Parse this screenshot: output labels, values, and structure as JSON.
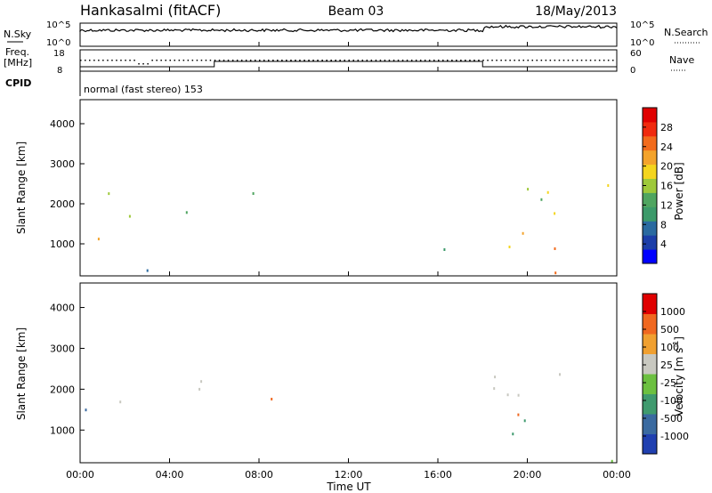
{
  "header": {
    "station": "Hankasalmi (fitACF)",
    "beam": "Beam 03",
    "date": "18/May/2013"
  },
  "noise_panel": {
    "left_label": "N.Sky",
    "left_ticks": [
      "10^5",
      "10^0"
    ],
    "right_label": "N.Search",
    "right_ticks": [
      "10^5",
      "10^0"
    ]
  },
  "freq_panel": {
    "left_label_1": "Freq.",
    "left_label_2": "[MHz]",
    "left_ticks": [
      "18",
      "8"
    ],
    "right_label": "Nave",
    "right_ticks": [
      "60",
      "0"
    ],
    "cpid_label": "CPID",
    "cpid_text": "normal (fast stereo) 153"
  },
  "chart_data": [
    {
      "type": "heatmap",
      "name": "power",
      "ylabel": "Slant Range [km]",
      "y_ticks": [
        "4000",
        "3000",
        "2000",
        "1000"
      ],
      "ylim": [
        200,
        4600
      ],
      "x_ticks": [
        "00:00",
        "04:00",
        "08:00",
        "12:00",
        "16:00",
        "20:00",
        "00:00"
      ],
      "colorbar": {
        "label": "Power [dB]",
        "ticks": [
          "28",
          "24",
          "20",
          "16",
          "12",
          "8",
          "4"
        ],
        "range": [
          0,
          32
        ],
        "colors": [
          "#0000ff",
          "#1c3ea8",
          "#2a6aa0",
          "#3c9a6a",
          "#4fa560",
          "#9ec93a",
          "#f4d51e",
          "#f3a32b",
          "#f26b1c",
          "#f02a0e",
          "#e00000"
        ]
      },
      "scatter_regions": [
        {
          "t": [
            0.3,
            1.7
          ],
          "r": [
            2000,
            2600
          ],
          "p": 14
        },
        {
          "t": [
            0.0,
            1.5
          ],
          "r": [
            800,
            1500
          ],
          "p": 22
        },
        {
          "t": [
            2.0,
            5.8
          ],
          "r": [
            1600,
            2350
          ],
          "p": 14
        },
        {
          "t": [
            0.5,
            5.5
          ],
          "r": [
            250,
            600
          ],
          "p": 12
        },
        {
          "t": [
            7.5,
            9.5
          ],
          "r": [
            1700,
            2300
          ],
          "p": 10
        },
        {
          "t": [
            15.2,
            17.0
          ],
          "r": [
            400,
            900
          ],
          "p": 8
        },
        {
          "t": [
            18.0,
            22.0
          ],
          "r": [
            1400,
            2500
          ],
          "p": 16
        },
        {
          "t": [
            19.0,
            24.0
          ],
          "r": [
            250,
            1300
          ],
          "p": 22
        },
        {
          "t": [
            22.0,
            24.0
          ],
          "r": [
            2100,
            2600
          ],
          "p": 20
        }
      ]
    },
    {
      "type": "heatmap",
      "name": "velocity",
      "ylabel": "Slant Range [km]",
      "y_ticks": [
        "4000",
        "3000",
        "2000",
        "1000"
      ],
      "ylim": [
        200,
        4600
      ],
      "x_ticks": [
        "00:00",
        "04:00",
        "08:00",
        "12:00",
        "16:00",
        "20:00",
        "00:00"
      ],
      "xlabel": "Time UT",
      "colorbar": {
        "label": "Velocity [m s",
        "label_sup": "-1",
        "label_end": "]",
        "ticks": [
          "1000",
          "500",
          "100",
          "25",
          "-25",
          "-100",
          "-500",
          "-1000"
        ],
        "colors": [
          "#2040b0",
          "#3a6aa0",
          "#3f9a6e",
          "#6cc040",
          "#c8c8c0",
          "#f0a030",
          "#f06820",
          "#e00000"
        ]
      },
      "scatter_regions": [
        {
          "t": [
            0.0,
            1.0
          ],
          "r": [
            800,
            1800
          ],
          "v": "#3a6aa0"
        },
        {
          "t": [
            1.5,
            6.0
          ],
          "r": [
            1700,
            2500
          ],
          "v": "#c8c8c0"
        },
        {
          "t": [
            8.0,
            10.0
          ],
          "r": [
            1700,
            2300
          ],
          "v": "#f06820"
        },
        {
          "t": [
            18.0,
            24.0
          ],
          "r": [
            1800,
            2700
          ],
          "v": "#c8c8c0"
        },
        {
          "t": [
            19.0,
            22.0
          ],
          "r": [
            500,
            1400
          ],
          "v": "#3f9a6e"
        },
        {
          "t": [
            21.0,
            24.0
          ],
          "r": [
            250,
            600
          ],
          "v": "#6cc040"
        },
        {
          "t": [
            18.5,
            20.0
          ],
          "r": [
            1000,
            1600
          ],
          "v": "#f06820"
        }
      ]
    }
  ]
}
